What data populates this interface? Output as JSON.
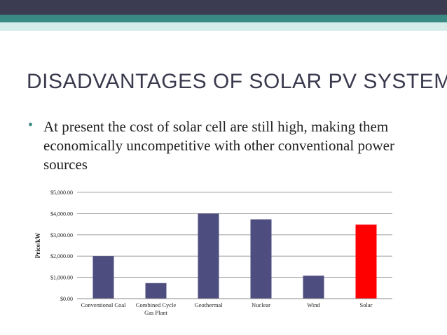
{
  "slide": {
    "title": "DISADVANTAGES OF SOLAR PV SYSTEM",
    "bullet": "At present the cost of solar cell are still high, making them economically uncompetitive with other conventional power sources",
    "bullet_icon": "bullet-dot",
    "colors": {
      "header_dark": "#3b3b52",
      "header_teal": "#3a8a84",
      "title": "#3a3a4e"
    }
  },
  "chart_data": {
    "type": "bar",
    "title": "",
    "xlabel": "",
    "ylabel": "Price/kW",
    "ylim": [
      0,
      5000
    ],
    "yticks": [
      0,
      1000,
      2000,
      3000,
      4000,
      5000
    ],
    "ytick_labels": [
      "$0.00",
      "$1,000.00",
      "$2,000.00",
      "$3,000.00",
      "$4,000.00",
      "$5,000.00"
    ],
    "categories": [
      [
        "Conventional Coal"
      ],
      [
        "Combined Cycle",
        "Gas Plant"
      ],
      [
        "Geothermal"
      ],
      [
        "Nuclear"
      ],
      [
        "Wind"
      ],
      [
        "Solar"
      ]
    ],
    "values": [
      2000,
      730,
      4000,
      3730,
      1080,
      3480
    ],
    "colors": [
      "#4d4d80",
      "#4d4d80",
      "#4d4d80",
      "#4d4d80",
      "#4d4d80",
      "#ff0000"
    ],
    "grid": true,
    "legend": "none"
  }
}
